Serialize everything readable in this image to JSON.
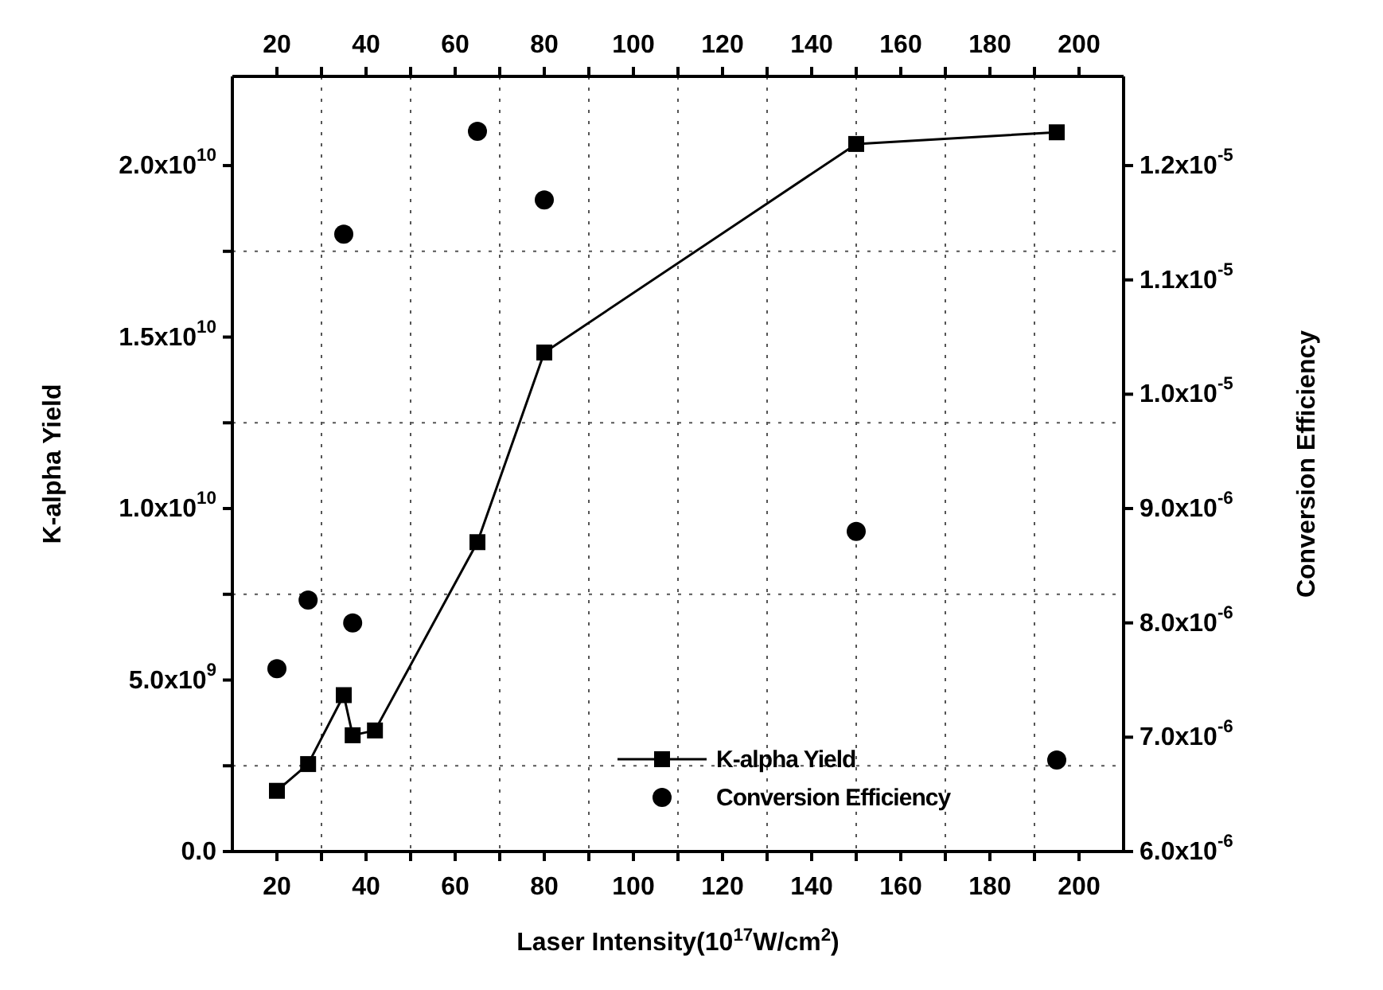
{
  "chart_data": {
    "type": "scatter",
    "xlabel": "Laser Intensity(10$^{17}$W/cm$^{2}$)",
    "ylabel": "K-alpha Yield",
    "y2label": "Conversion Efficiency",
    "xlim": [
      10,
      210
    ],
    "x2lim": [
      10,
      210
    ],
    "xticks": [
      20,
      {
        "value": 30,
        "label": null
      },
      40,
      {
        "value": 50,
        "label": null
      },
      60,
      {
        "value": 70,
        "label": null
      },
      80,
      {
        "value": 90,
        "label": null
      },
      100,
      {
        "value": 110,
        "label": null
      },
      120,
      {
        "value": 130,
        "label": null
      },
      140,
      {
        "value": 150,
        "label": null
      },
      160,
      {
        "value": 170,
        "label": null
      },
      180,
      {
        "value": 190,
        "label": null
      },
      200
    ],
    "x2ticks": [
      20,
      {
        "value": 30,
        "label": null
      },
      40,
      {
        "value": 50,
        "label": null
      },
      60,
      {
        "value": 70,
        "label": null
      },
      80,
      {
        "value": 90,
        "label": null
      },
      100,
      {
        "value": 110,
        "label": null
      },
      120,
      {
        "value": 130,
        "label": null
      },
      140,
      {
        "value": 150,
        "label": null
      },
      160,
      {
        "value": 170,
        "label": null
      },
      180,
      {
        "value": 190,
        "label": null
      },
      200
    ],
    "ylim": [
      0,
      22600000000
    ],
    "yticks": [
      {
        "value": 0,
        "label": "0.0"
      },
      {
        "value": 2500000000,
        "label": null
      },
      {
        "value": 5000000000,
        "label": "5.0x10$^{9}$"
      },
      {
        "value": 7500000000,
        "label": null
      },
      {
        "value": 10000000000,
        "label": "1.0x10$^{10}$"
      },
      {
        "value": 12500000000,
        "label": null
      },
      {
        "value": 15000000000,
        "label": "1.5x10$^{10}$"
      },
      {
        "value": 17500000000,
        "label": null
      },
      {
        "value": 20000000000,
        "label": "2.0x10$^{10}$"
      }
    ],
    "y2lim": [
      6e-06,
      1.278e-05
    ],
    "y2ticks": [
      {
        "value": 6e-06,
        "label": "6.0x10$^{-6}$"
      },
      {
        "value": 7e-06,
        "label": "7.0x10$^{-6}$"
      },
      {
        "value": 8e-06,
        "label": "8.0x10$^{-6}$"
      },
      {
        "value": 9e-06,
        "label": "9.0x10$^{-6}$"
      },
      {
        "value": 1e-05,
        "label": "1.0x10$^{-5}$"
      },
      {
        "value": 1.1e-05,
        "label": "1.1x10$^{-5}$"
      },
      {
        "value": 1.2e-05,
        "label": "1.2x10$^{-5}$"
      }
    ],
    "grid": true,
    "legend": "bottom right",
    "series": [
      {
        "name": "K-alpha Yield",
        "type": "line",
        "marker": "square",
        "color": "#000000",
        "x": [
          20,
          27,
          35,
          37,
          42,
          65,
          80,
          150,
          195
        ],
        "values": [
          1770000000,
          2550000000,
          4560000000,
          3390000000,
          3530000000,
          9020000000,
          14550000000,
          20630000000,
          20970000000
        ]
      },
      {
        "name": "Conversion Efficiency",
        "marker": "circle",
        "axis": "y2",
        "color": "#000000",
        "x": [
          20,
          27,
          35,
          37,
          65,
          80,
          150,
          195
        ],
        "values": [
          7.6e-06,
          8.2e-06,
          1.14e-05,
          8e-06,
          1.23e-05,
          1.17e-05,
          8.8e-06,
          6.8e-06
        ]
      }
    ]
  }
}
